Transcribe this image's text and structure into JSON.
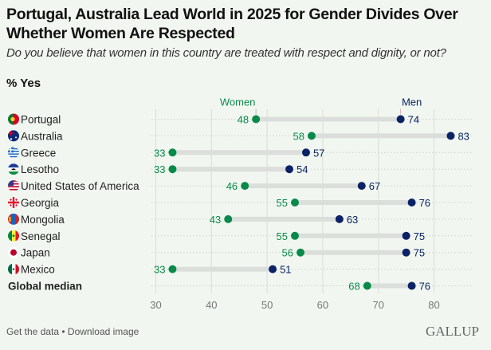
{
  "header": {
    "title": "Portugal, Australia Lead World in 2025 for Gender Divides Over Whether Women Are Respected",
    "subtitle": "Do you believe that women in this country are treated with respect and dignity, or not?",
    "unit": "% Yes"
  },
  "colors": {
    "women": "#0a8a4a",
    "men": "#0b2266",
    "connector": "#dcdedb",
    "grid": "#d9ddd6"
  },
  "chart_data": {
    "type": "dumbbell",
    "title": "Portugal, Australia Lead World in 2025 for Gender Divides Over Whether Women Are Respected",
    "xlabel": "",
    "ylabel": "",
    "xlim": [
      30,
      80
    ],
    "xticks": [
      30,
      40,
      50,
      60,
      70,
      80
    ],
    "grid": true,
    "legend": [
      "Women",
      "Men"
    ],
    "legend_placement": "top (labels above Portugal markers)",
    "categories": [
      "Portugal",
      "Australia",
      "Greece",
      "Lesotho",
      "United States of America",
      "Georgia",
      "Mongolia",
      "Senegal",
      "Japan",
      "Mexico",
      "Global median"
    ],
    "flags": [
      "portugal-flag",
      "australia-flag",
      "greece-flag",
      "lesotho-flag",
      "usa-flag",
      "georgia-flag",
      "mongolia-flag",
      "senegal-flag",
      "japan-flag",
      "mexico-flag",
      ""
    ],
    "series": [
      {
        "name": "Women",
        "values": [
          48,
          58,
          33,
          33,
          46,
          55,
          43,
          55,
          56,
          33,
          68
        ]
      },
      {
        "name": "Men",
        "values": [
          74,
          83,
          57,
          54,
          67,
          76,
          63,
          75,
          75,
          51,
          76
        ]
      }
    ]
  },
  "footer": {
    "get_data": "Get the data",
    "separator": " • ",
    "download": "Download image",
    "logo": "GALLUP"
  }
}
